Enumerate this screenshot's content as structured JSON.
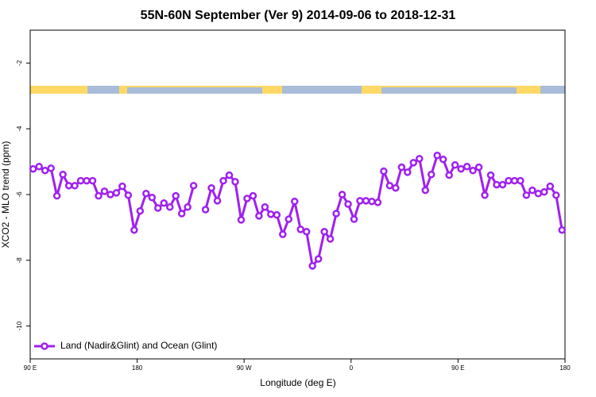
{
  "chart_data": {
    "type": "line",
    "title": "55N-60N September (Ver 9)   2014-09-06 to 2018-12-31",
    "x_label": "Longitude (deg E)",
    "y_label": "XCO2 - MLO trend (ppm)",
    "xlim": [
      90,
      540
    ],
    "ylim": [
      -11,
      -1
    ],
    "xticks": [
      {
        "value": 90,
        "label": "90 E"
      },
      180,
      {
        "value": 270,
        "label": "90 W"
      },
      {
        "value": 360,
        "label": "0"
      },
      {
        "value": 450,
        "label": "90 E"
      },
      {
        "value": 540,
        "label": "180"
      }
    ],
    "yticks": [
      -2,
      -4,
      -6,
      -8,
      -10
    ],
    "legend": "bottom-left",
    "x": [
      92.5,
      97.5,
      102.5,
      107.5,
      112.5,
      117.5,
      122.5,
      127.5,
      132.5,
      137.5,
      142.5,
      147.5,
      152.5,
      157.5,
      162.5,
      167.5,
      172.5,
      177.5,
      182.5,
      187.5,
      192.5,
      197.5,
      202.5,
      207.5,
      212.5,
      217.5,
      222.5,
      227.5,
      232.5,
      237.5,
      242.5,
      247.5,
      252.5,
      257.5,
      262.5,
      267.5,
      272.5,
      277.5,
      282.5,
      287.5,
      292.5,
      297.5,
      302.5,
      307.5,
      312.5,
      317.5,
      322.5,
      327.5,
      332.5,
      337.5,
      342.5,
      347.5,
      352.5,
      357.5,
      362.5,
      367.5,
      372.5,
      377.5,
      382.5,
      387.5,
      392.5,
      397.5,
      402.5,
      407.5,
      412.5,
      417.5,
      422.5,
      427.5,
      432.5,
      437.5,
      442.5,
      447.5,
      452.5,
      457.5,
      462.5,
      467.5,
      472.5,
      477.5,
      482.5,
      487.5,
      492.5,
      497.5,
      502.5,
      507.5,
      512.5,
      517.5,
      522.5,
      527.5,
      532.5,
      537.5
    ],
    "series": [
      {
        "name": "Land (Nadir&Glint) and Ocean (Glint)",
        "color": "#a020f0",
        "values": [
          -5.22,
          -5.15,
          -5.27,
          -5.2,
          -6.04,
          -5.39,
          -5.73,
          -5.73,
          -5.58,
          -5.58,
          -5.58,
          -6.04,
          -5.9,
          -6.0,
          -5.95,
          -5.75,
          -6.02,
          -7.08,
          -6.5,
          -5.97,
          -6.09,
          -6.41,
          -6.26,
          -6.38,
          -6.04,
          -6.58,
          -6.38,
          -5.73,
          null,
          -6.46,
          -5.8,
          -6.19,
          -5.58,
          -5.41,
          -5.61,
          -6.77,
          -6.12,
          -6.04,
          -6.65,
          -6.38,
          -6.6,
          -6.62,
          -7.21,
          -6.75,
          -6.21,
          -7.06,
          -7.13,
          -8.17,
          -7.96,
          -7.13,
          -7.35,
          -6.58,
          -6.0,
          -6.29,
          -6.75,
          -6.19,
          -6.19,
          -6.21,
          -6.24,
          -5.29,
          -5.73,
          -5.8,
          -5.17,
          -5.32,
          -5.03,
          -4.91,
          -5.87,
          -5.39,
          -4.81,
          -4.93,
          -5.41,
          -5.1,
          -5.22,
          -5.15,
          -5.27,
          -5.17,
          -6.02,
          -5.41,
          -5.7,
          -5.7,
          -5.58,
          -5.58,
          -5.58,
          -6.02,
          -5.87,
          -5.97,
          -5.92,
          -5.75,
          -6.02,
          -7.08
        ]
      }
    ]
  }
}
